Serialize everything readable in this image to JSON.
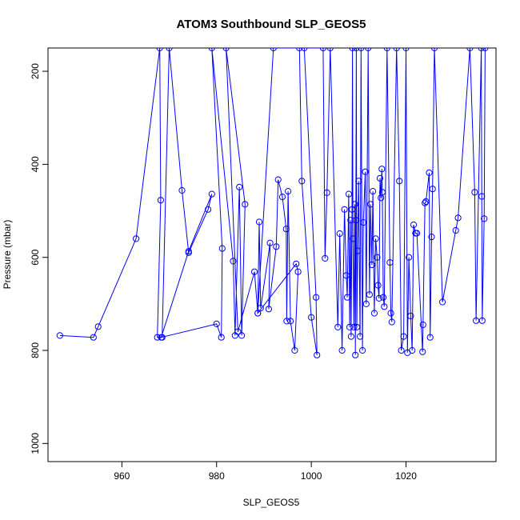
{
  "chart_data": {
    "type": "line",
    "title": "ATOM3 Southbound SLP_GEOS5",
    "xlabel": "SLP_GEOS5",
    "ylabel": "Pressure (mbar)",
    "xlim": [
      944.4,
      1039.0
    ],
    "ylim": [
      1039,
      150
    ],
    "y_reversed": true,
    "grid": false,
    "legend": "none",
    "line_color": "#0000ff",
    "marker": "open-circle",
    "x_ticks": [
      960,
      980,
      1000,
      1020
    ],
    "y_ticks": [
      200,
      400,
      600,
      800,
      1000
    ],
    "points": [
      [
        946.9,
        768
      ],
      [
        954.0,
        772
      ],
      [
        955.0,
        749
      ],
      [
        963.0,
        560
      ],
      [
        968.0,
        150
      ],
      [
        968.2,
        477
      ],
      [
        967.5,
        772
      ],
      [
        968.5,
        772
      ],
      [
        970.0,
        150
      ],
      [
        972.7,
        456
      ],
      [
        974.1,
        590
      ],
      [
        978.2,
        497
      ],
      [
        979.0,
        464
      ],
      [
        974.1,
        587
      ],
      [
        968.3,
        772
      ],
      [
        980.0,
        743
      ],
      [
        981.0,
        772
      ],
      [
        981.2,
        581
      ],
      [
        979.0,
        150
      ],
      [
        983.5,
        608
      ],
      [
        983.9,
        768
      ],
      [
        984.8,
        449
      ],
      [
        985.3,
        768
      ],
      [
        986.0,
        486
      ],
      [
        982.0,
        150
      ],
      [
        984.5,
        760
      ],
      [
        988.0,
        631
      ],
      [
        988.7,
        720
      ],
      [
        989.0,
        524
      ],
      [
        989.3,
        709
      ],
      [
        991.3,
        569
      ],
      [
        991.0,
        711
      ],
      [
        992.6,
        577
      ],
      [
        993.0,
        433
      ],
      [
        993.9,
        470
      ],
      [
        994.7,
        539
      ],
      [
        994.8,
        737
      ],
      [
        995.1,
        458
      ],
      [
        995.6,
        737
      ],
      [
        996.5,
        800
      ],
      [
        997.2,
        631
      ],
      [
        996.8,
        614
      ],
      [
        988.7,
        720
      ],
      [
        992.0,
        150
      ],
      [
        997.5,
        150
      ],
      [
        998.0,
        436
      ],
      [
        1000.0,
        729
      ],
      [
        1001.2,
        810
      ],
      [
        1001.0,
        686
      ],
      [
        998.5,
        150
      ],
      [
        1002.5,
        150
      ],
      [
        1002.9,
        602
      ],
      [
        1003.3,
        461
      ],
      [
        1004.0,
        150
      ],
      [
        1005.6,
        750
      ],
      [
        1006.0,
        549
      ],
      [
        1006.5,
        800
      ],
      [
        1007.0,
        497
      ],
      [
        1007.4,
        639
      ],
      [
        1007.6,
        686
      ],
      [
        1007.9,
        464
      ],
      [
        1008.1,
        750
      ],
      [
        1008.3,
        520
      ],
      [
        1008.4,
        770
      ],
      [
        1008.6,
        497
      ],
      [
        1008.7,
        150
      ],
      [
        1008.8,
        560
      ],
      [
        1009.0,
        750
      ],
      [
        1009.2,
        486
      ],
      [
        1009.3,
        810
      ],
      [
        1009.4,
        520
      ],
      [
        1009.5,
        150
      ],
      [
        1009.6,
        750
      ],
      [
        1009.8,
        586
      ],
      [
        1010.0,
        436
      ],
      [
        1010.3,
        770
      ],
      [
        1010.5,
        150
      ],
      [
        1010.8,
        800
      ],
      [
        1011.0,
        525
      ],
      [
        1011.4,
        416
      ],
      [
        1011.6,
        700
      ],
      [
        1012.0,
        150
      ],
      [
        1012.3,
        680
      ],
      [
        1012.5,
        486
      ],
      [
        1012.8,
        616
      ],
      [
        1013.0,
        458
      ],
      [
        1013.3,
        720
      ],
      [
        1013.6,
        560
      ],
      [
        1013.9,
        600
      ],
      [
        1014.1,
        660
      ],
      [
        1014.3,
        688
      ],
      [
        1014.5,
        430
      ],
      [
        1014.7,
        472
      ],
      [
        1014.9,
        410
      ],
      [
        1015.0,
        460
      ],
      [
        1015.2,
        686
      ],
      [
        1015.4,
        706
      ],
      [
        1016.0,
        150
      ],
      [
        1016.6,
        611
      ],
      [
        1016.8,
        720
      ],
      [
        1017.0,
        739
      ],
      [
        1018.0,
        150
      ],
      [
        1018.6,
        436
      ],
      [
        1019.0,
        800
      ],
      [
        1019.5,
        770
      ],
      [
        1020.0,
        150
      ],
      [
        1020.3,
        805
      ],
      [
        1020.6,
        600
      ],
      [
        1021.0,
        726
      ],
      [
        1021.3,
        800
      ],
      [
        1021.6,
        530
      ],
      [
        1022.0,
        548
      ],
      [
        1022.3,
        548
      ],
      [
        1023.5,
        803
      ],
      [
        1023.6,
        745
      ],
      [
        1024.0,
        483
      ],
      [
        1024.2,
        480
      ],
      [
        1024.9,
        418
      ],
      [
        1025.1,
        772
      ],
      [
        1025.4,
        556
      ],
      [
        1025.6,
        453
      ],
      [
        1026.0,
        150
      ],
      [
        1027.7,
        696
      ],
      [
        1030.5,
        542
      ],
      [
        1031.0,
        515
      ],
      [
        1033.5,
        150
      ],
      [
        1034.5,
        460
      ],
      [
        1034.8,
        736
      ],
      [
        1035.9,
        150
      ],
      [
        1036.0,
        469
      ],
      [
        1036.1,
        736
      ],
      [
        1036.5,
        517
      ],
      [
        1036.7,
        150
      ]
    ]
  }
}
